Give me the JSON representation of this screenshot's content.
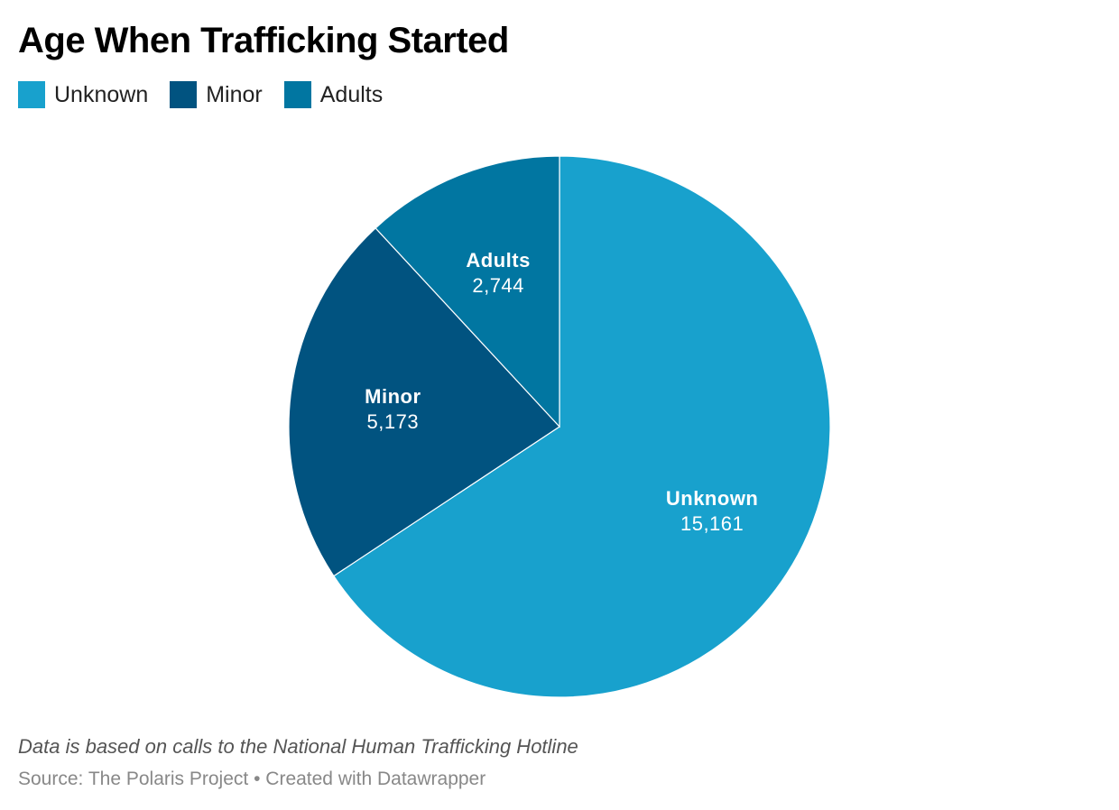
{
  "chart_data": {
    "type": "pie",
    "title": "Age When Trafficking Started",
    "categories": [
      "Unknown",
      "Minor",
      "Adults"
    ],
    "values": [
      15161,
      5173,
      2744
    ],
    "value_labels": [
      "15,161",
      "5,173",
      "2,744"
    ],
    "colors": [
      "#18a1cd",
      "#015380",
      "#0176a1"
    ],
    "start": "12 o'clock",
    "direction": "clockwise",
    "legend": "top-left",
    "slice_labels": "inside"
  },
  "note": "Data is based on calls to the National Human Trafficking Hotline",
  "source": {
    "text": "Source: The Polaris Project",
    "separator": "•",
    "credit": "Created with Datawrapper"
  }
}
